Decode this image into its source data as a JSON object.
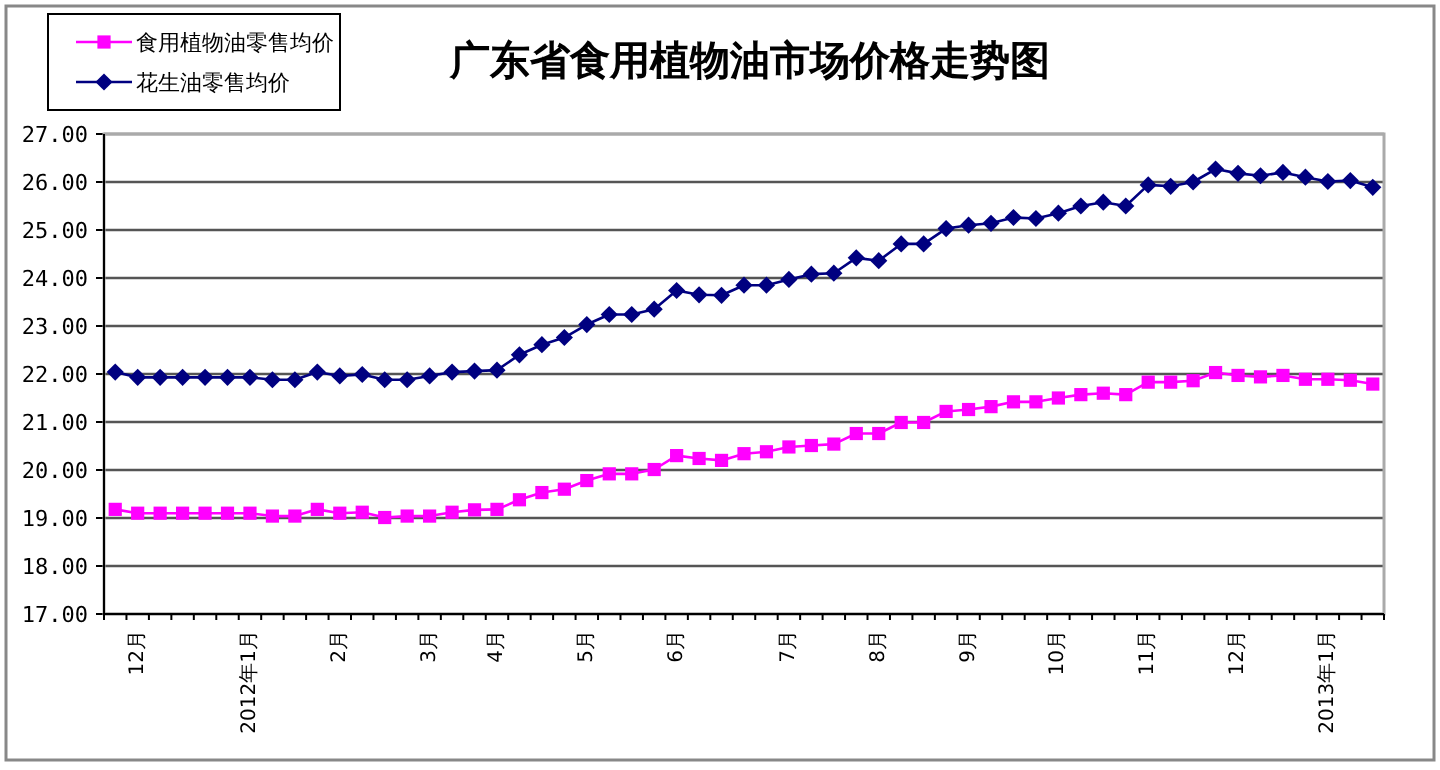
{
  "chart_data": {
    "type": "line",
    "title": "广东省食用植物油市场价格走势图",
    "categories": [
      null,
      "12月",
      null,
      null,
      null,
      null,
      "2012年1月",
      null,
      null,
      null,
      "2月",
      null,
      null,
      null,
      "3月",
      null,
      null,
      "4月",
      null,
      null,
      null,
      "5月",
      null,
      null,
      null,
      "6月",
      null,
      null,
      null,
      null,
      "7月",
      null,
      null,
      null,
      "8月",
      null,
      null,
      null,
      "9月",
      null,
      null,
      null,
      "10月",
      null,
      null,
      null,
      "11月",
      null,
      null,
      null,
      "12月",
      null,
      null,
      null,
      "2013年1月",
      null,
      null
    ],
    "series": [
      {
        "name": "食用植物油零售均价",
        "color": "#ff00ff",
        "marker": "square",
        "values": [
          19.18,
          19.1,
          19.1,
          19.1,
          19.1,
          19.1,
          19.1,
          19.04,
          19.04,
          19.18,
          19.1,
          19.12,
          19.01,
          19.04,
          19.04,
          19.12,
          19.17,
          19.18,
          19.38,
          19.53,
          19.6,
          19.78,
          19.92,
          19.92,
          20.01,
          20.3,
          20.24,
          20.2,
          20.34,
          20.38,
          20.48,
          20.51,
          20.54,
          20.76,
          20.76,
          20.99,
          20.99,
          21.22,
          21.26,
          21.32,
          21.42,
          21.42,
          21.5,
          21.57,
          21.6,
          21.57,
          21.83,
          21.83,
          21.86,
          22.03,
          21.97,
          21.94,
          21.97,
          21.89,
          21.89,
          21.87,
          21.79
        ]
      },
      {
        "name": "花生油零售均价",
        "color": "#000080",
        "marker": "diamond",
        "values": [
          22.04,
          21.93,
          21.93,
          21.93,
          21.93,
          21.93,
          21.93,
          21.88,
          21.88,
          22.04,
          21.96,
          21.99,
          21.88,
          21.88,
          21.96,
          22.04,
          22.06,
          22.08,
          22.4,
          22.61,
          22.76,
          23.03,
          23.24,
          23.24,
          23.35,
          23.74,
          23.65,
          23.64,
          23.85,
          23.85,
          23.97,
          24.08,
          24.1,
          24.42,
          24.36,
          24.71,
          24.71,
          25.03,
          25.1,
          25.14,
          25.26,
          25.24,
          25.35,
          25.5,
          25.58,
          25.5,
          25.94,
          25.91,
          26.0,
          26.27,
          26.18,
          26.13,
          26.2,
          26.1,
          26.01,
          26.03,
          25.89
        ]
      }
    ],
    "ylim": [
      17,
      27
    ],
    "yticks": [
      {
        "value": 17,
        "label": "17.00"
      },
      {
        "value": 18,
        "label": "18.00"
      },
      {
        "value": 19,
        "label": "19.00"
      },
      {
        "value": 20,
        "label": "20.00"
      },
      {
        "value": 21,
        "label": "21.00"
      },
      {
        "value": 22,
        "label": "22.00"
      },
      {
        "value": 23,
        "label": "23.00"
      },
      {
        "value": 24,
        "label": "24.00"
      },
      {
        "value": 25,
        "label": "25.00"
      },
      {
        "value": 26,
        "label": "26.00"
      },
      {
        "value": 27,
        "label": "27.00"
      }
    ],
    "grid": "y",
    "legend": "top left"
  }
}
